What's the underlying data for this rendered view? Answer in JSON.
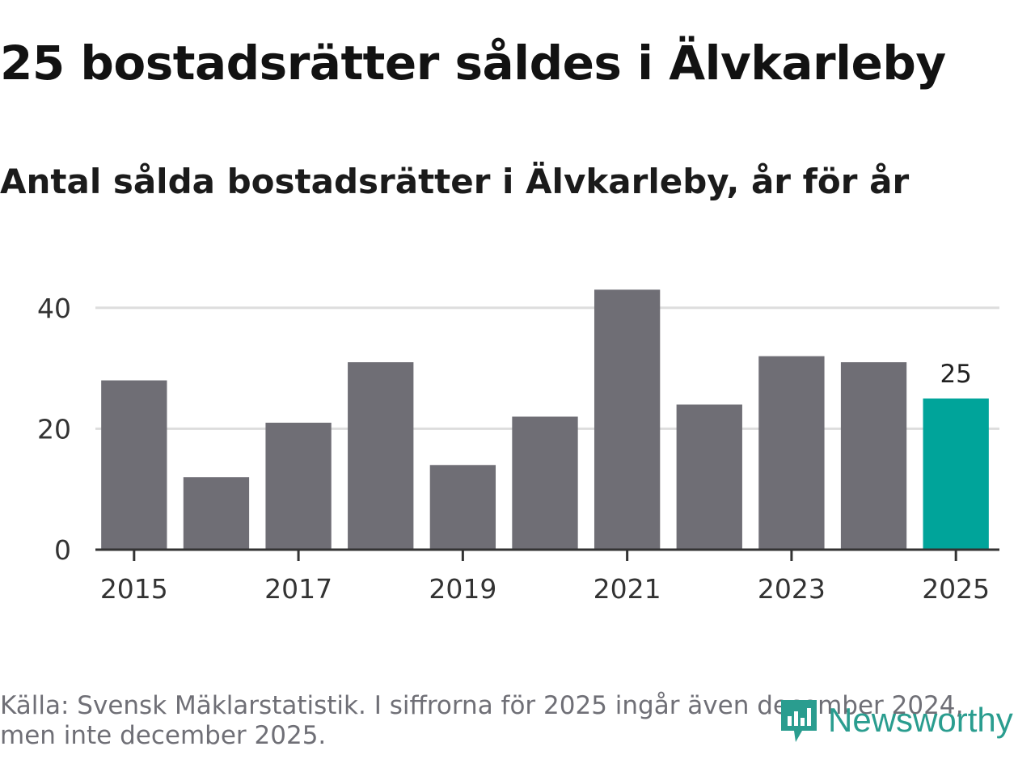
{
  "title": "25 bostadsrätter såldes i Älvkarleby",
  "subtitle": "Antal sålda bostadsrätter i Älvkarleby, år för år",
  "footer": {
    "source": "Källa: Svensk Mäklarstatistik. I siffrorna för 2025 ingår även december 2024, men inte december 2025."
  },
  "logo": {
    "text": "Newsworthy",
    "icon": "newsworthy-logo-icon",
    "color": "#2a9d8f"
  },
  "colors": {
    "bar": "#6f6e75",
    "highlight": "#00a49a",
    "grid": "#dddddd",
    "axis": "#333333",
    "tick_text": "#333333"
  },
  "chart_data": {
    "type": "bar",
    "title": "Antal sålda bostadsrätter i Älvkarleby, år för år",
    "categories": [
      "2015",
      "2016",
      "2017",
      "2018",
      "2019",
      "2020",
      "2021",
      "2022",
      "2023",
      "2024",
      "2025"
    ],
    "values": [
      28,
      12,
      21,
      31,
      14,
      22,
      43,
      24,
      32,
      31,
      25
    ],
    "highlight_index": 10,
    "data_labels": [
      {
        "index": 10,
        "text": "25"
      }
    ],
    "x_tick_labels": [
      "2015",
      "2017",
      "2019",
      "2021",
      "2023",
      "2025"
    ],
    "y_ticks": [
      0,
      20,
      40
    ],
    "ylim": [
      0,
      46
    ],
    "xlabel": "",
    "ylabel": "",
    "grid": true
  }
}
